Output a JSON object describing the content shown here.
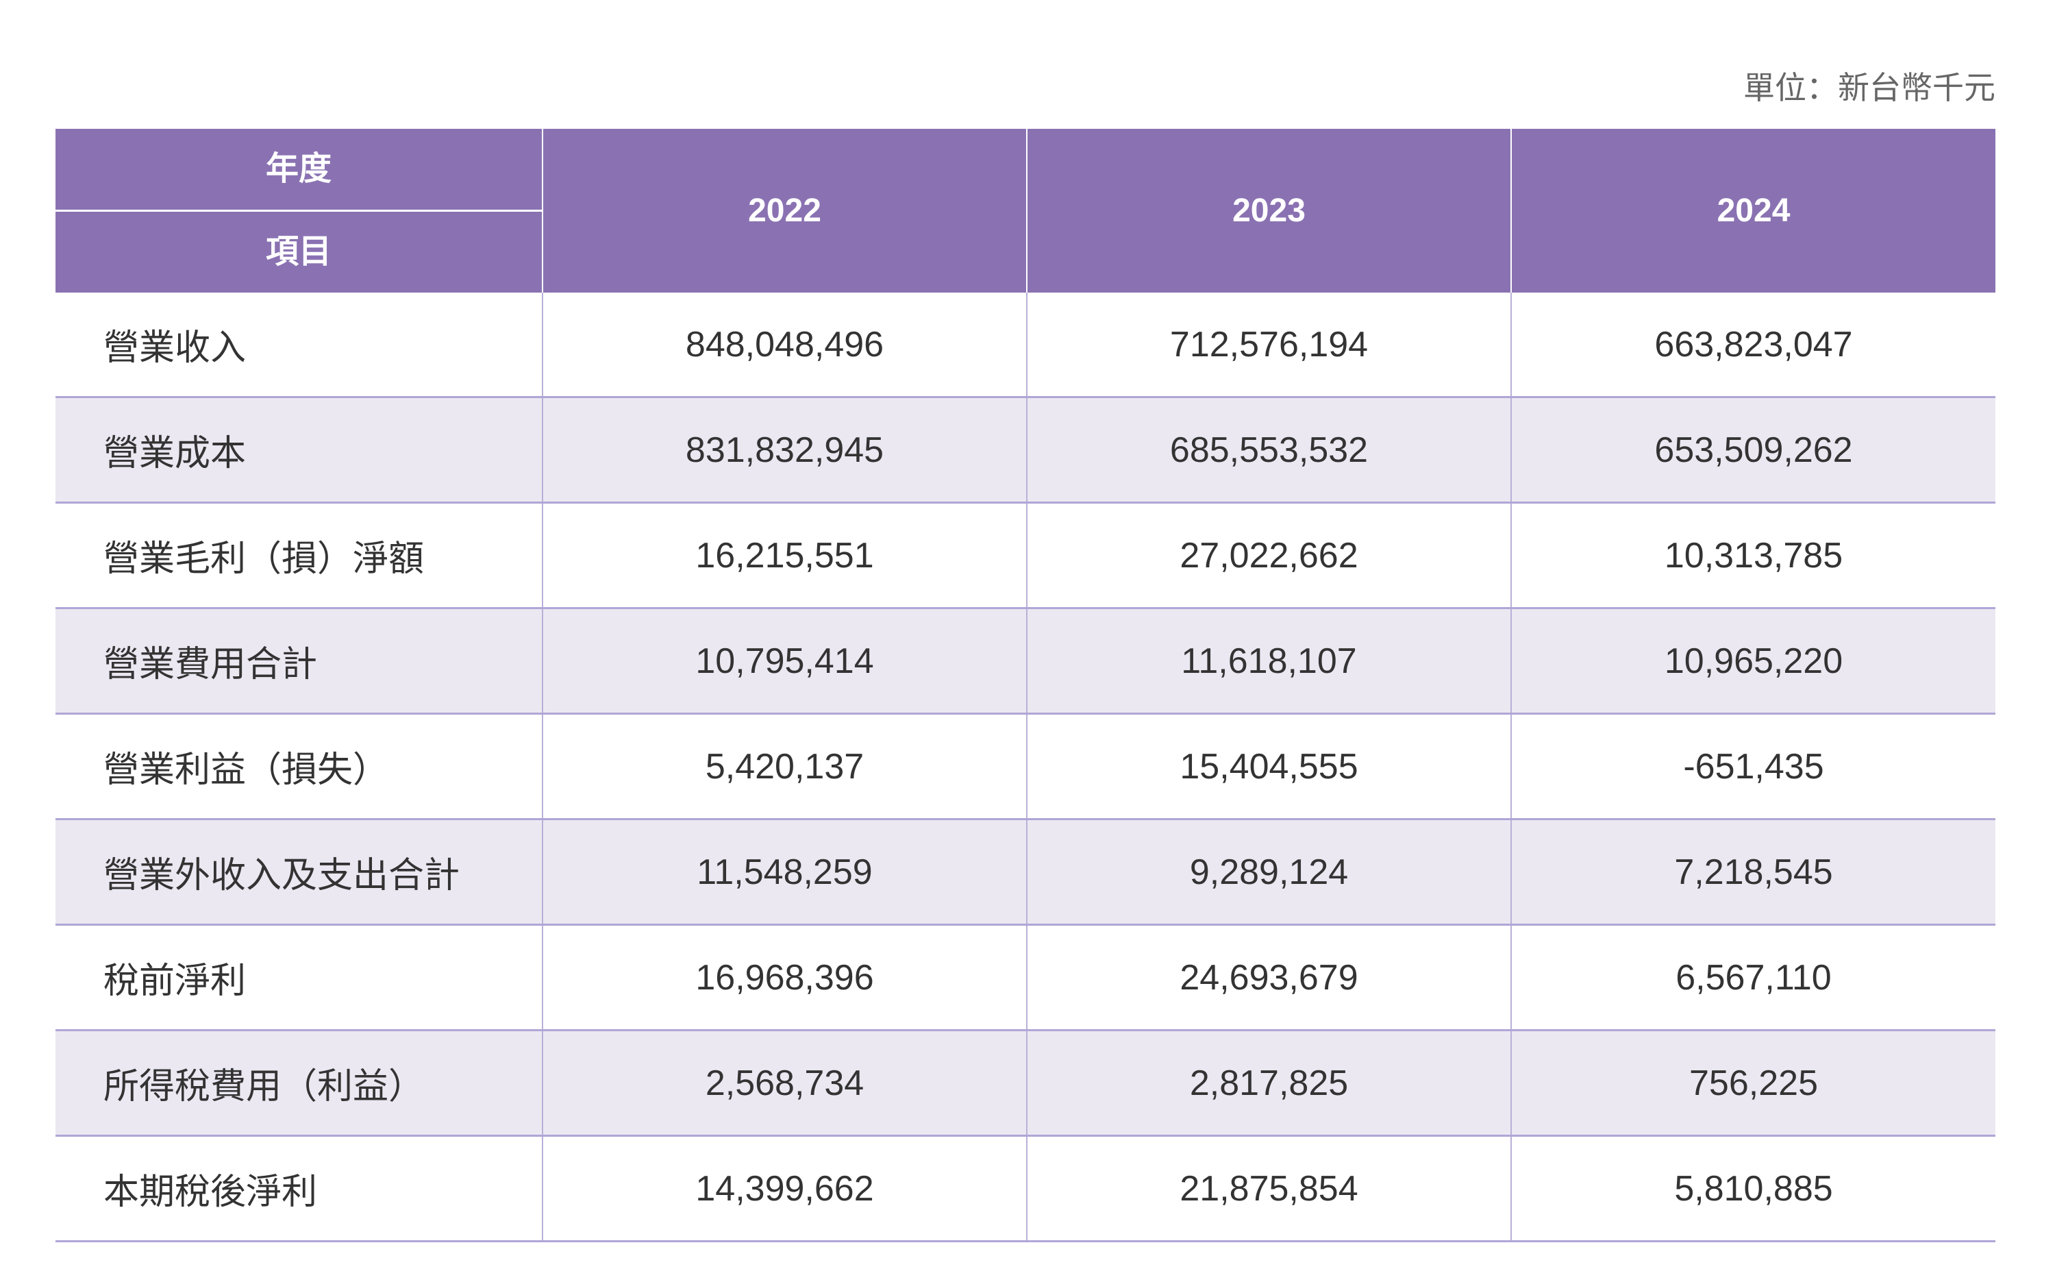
{
  "unit_label": "單位：新台幣千元",
  "header": {
    "year_label": "年度",
    "item_label": "項目",
    "years": [
      "2022",
      "2023",
      "2024"
    ]
  },
  "rows": [
    {
      "item": "營業收入",
      "values": [
        "848,048,496",
        "712,576,194",
        "663,823,047"
      ]
    },
    {
      "item": "營業成本",
      "values": [
        "831,832,945",
        "685,553,532",
        "653,509,262"
      ]
    },
    {
      "item": "營業毛利（損）淨額",
      "values": [
        "16,215,551",
        "27,022,662",
        "10,313,785"
      ]
    },
    {
      "item": "營業費用合計",
      "values": [
        "10,795,414",
        "11,618,107",
        "10,965,220"
      ]
    },
    {
      "item": "營業利益（損失）",
      "values": [
        "5,420,137",
        "15,404,555",
        "-651,435"
      ]
    },
    {
      "item": "營業外收入及支出合計",
      "values": [
        "11,548,259",
        "9,289,124",
        "7,218,545"
      ]
    },
    {
      "item": "稅前淨利",
      "values": [
        "16,968,396",
        "24,693,679",
        "6,567,110"
      ]
    },
    {
      "item": "所得稅費用（利益）",
      "values": [
        "2,568,734",
        "2,817,825",
        "756,225"
      ]
    },
    {
      "item": "本期稅後淨利",
      "values": [
        "14,399,662",
        "21,875,854",
        "5,810,885"
      ]
    }
  ],
  "colors": {
    "header": "#8a72b2",
    "alt_row": "#ebe8f2",
    "border": "#b0a6d6"
  }
}
